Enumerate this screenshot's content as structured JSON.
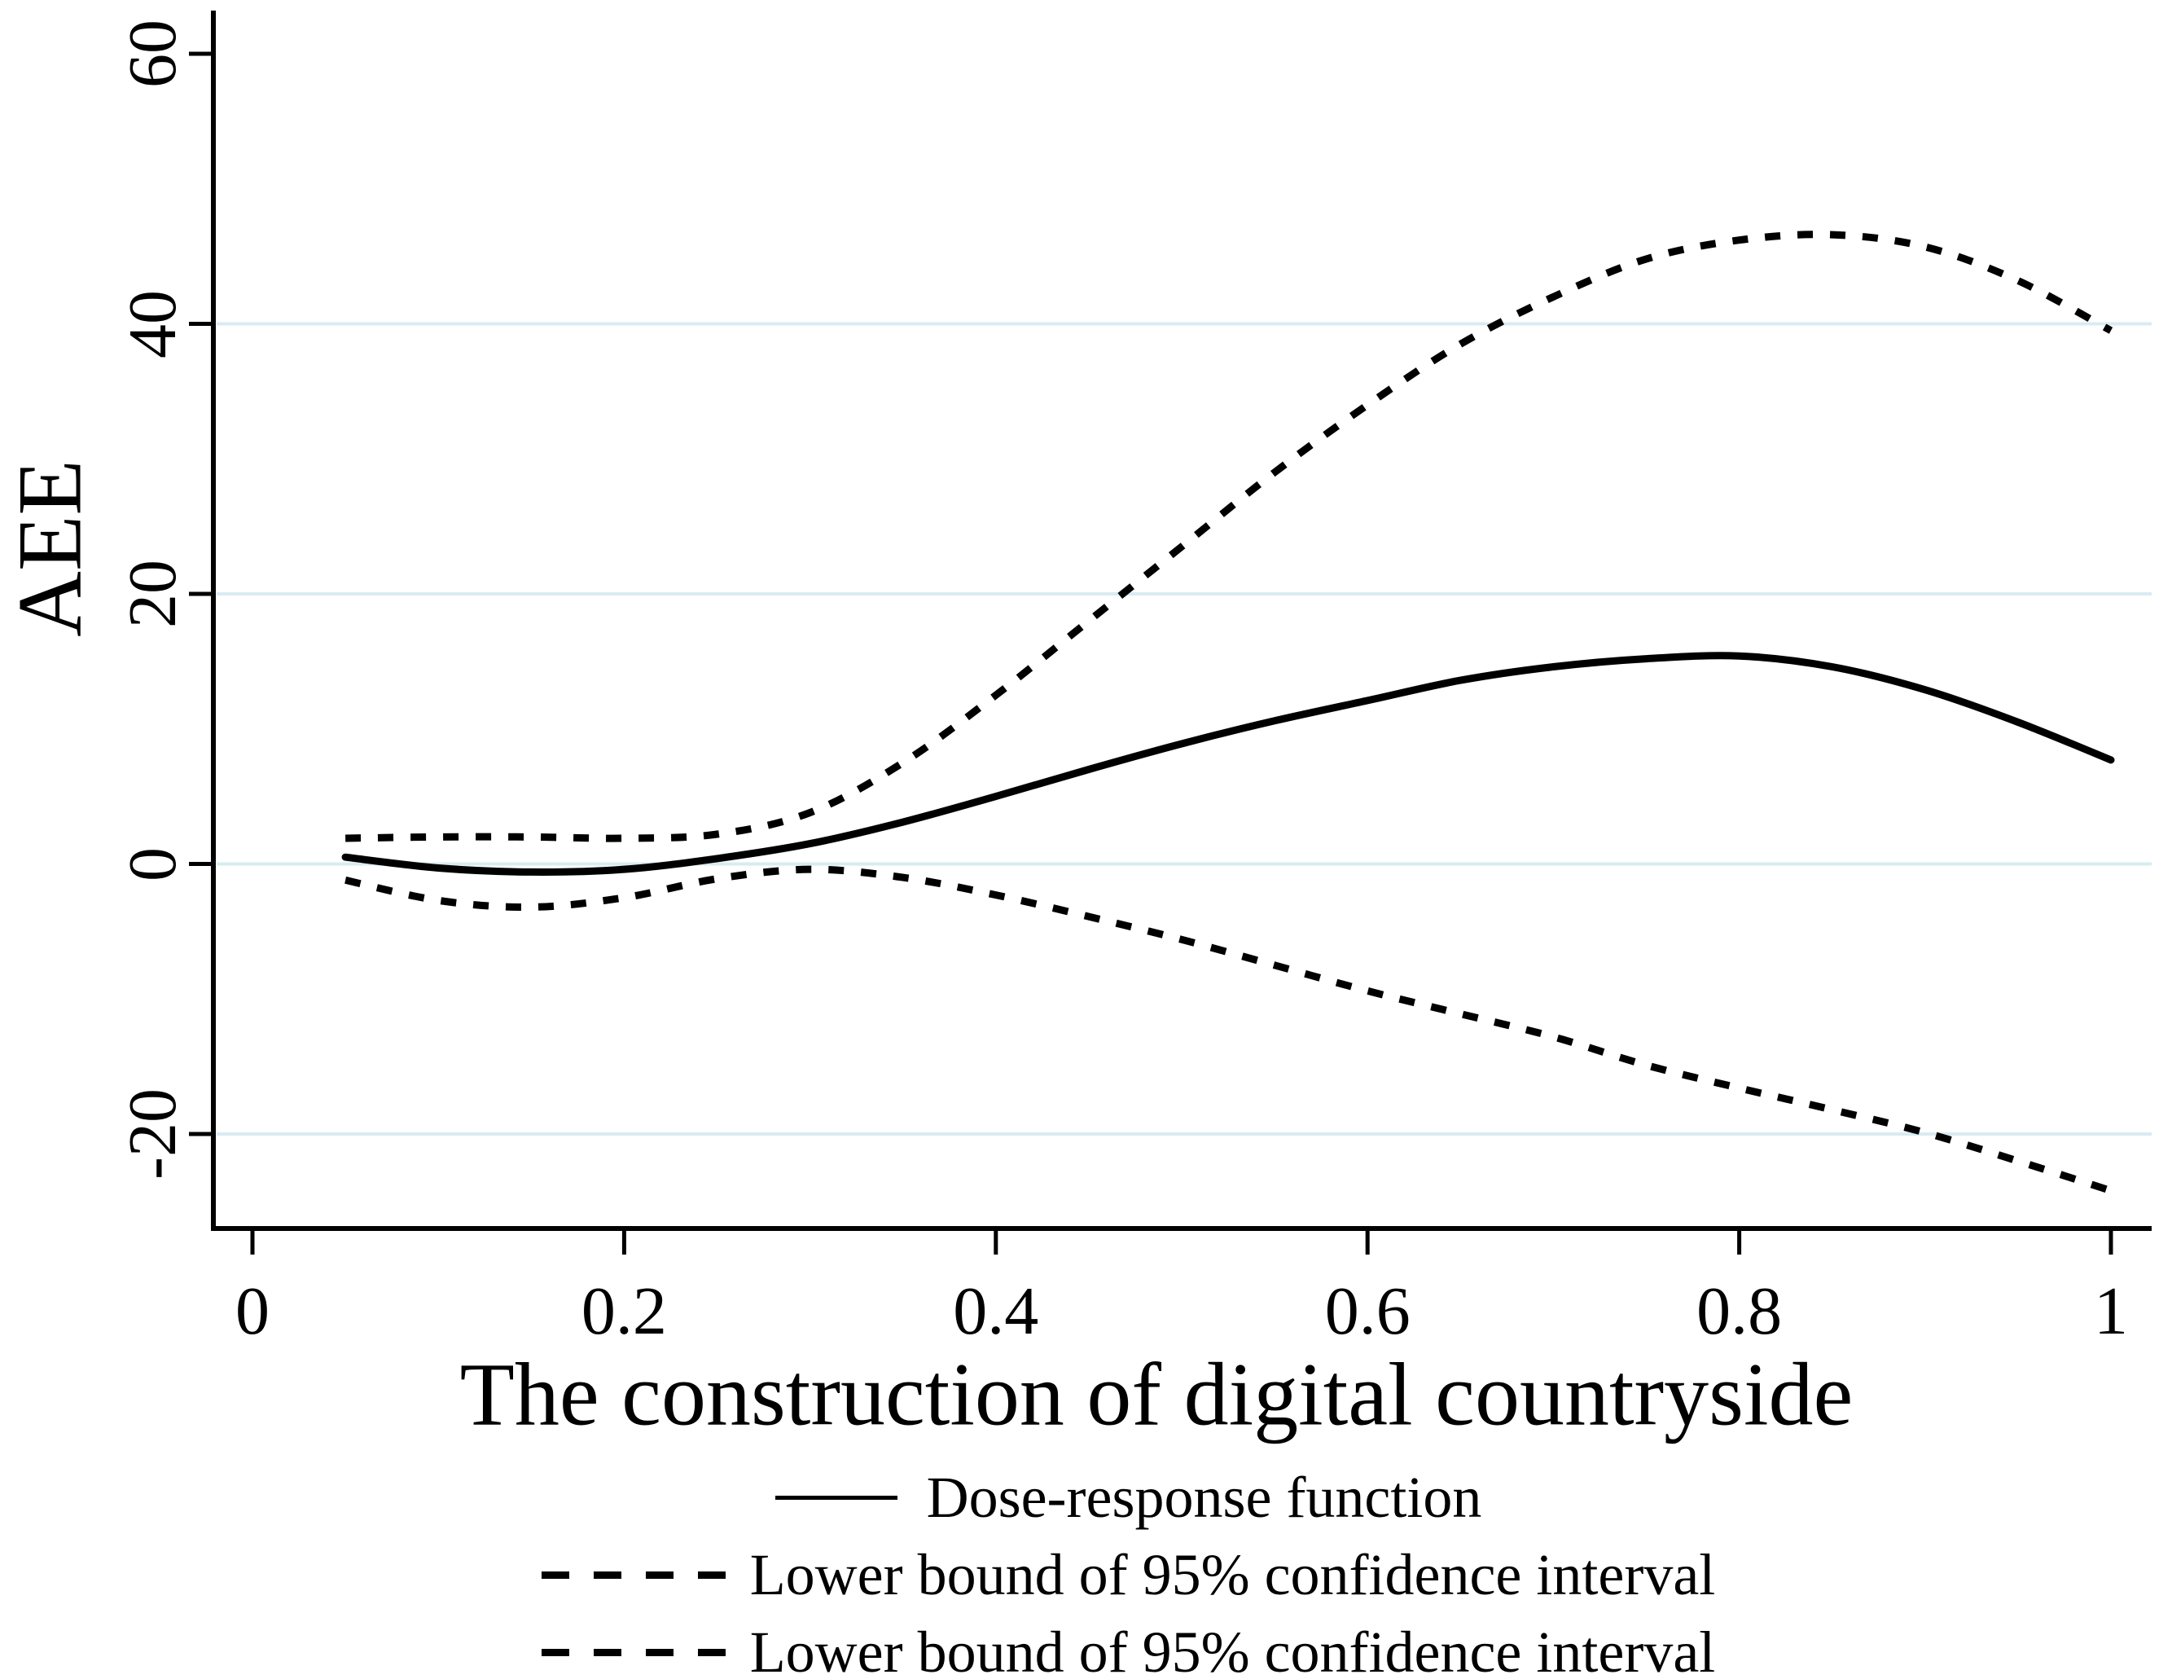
{
  "figure": {
    "ylabel": "AEE",
    "xlabel": "The construction of digital countryside"
  },
  "legend": {
    "items": [
      {
        "label": "Dose-response function",
        "style": "solid"
      },
      {
        "label": "Lower bound of 95% confidence interval",
        "style": "dashed"
      },
      {
        "label": "Lower bound of 95% confidence interval",
        "style": "dashed"
      }
    ]
  },
  "colors": {
    "line": "#000000",
    "grid": "#d9ebf2",
    "background": "#ffffff",
    "text": "#000000"
  },
  "chart_data": {
    "type": "line",
    "title": "",
    "xlabel": "The construction of digital countryside",
    "ylabel": "AEE",
    "xlim": [
      0,
      1
    ],
    "ylim": [
      -27,
      63
    ],
    "xticks": [
      0,
      0.2,
      0.4,
      0.6,
      0.8,
      1
    ],
    "yticks": [
      60,
      40,
      20,
      0,
      -20
    ],
    "grid_yticks": [
      40,
      20,
      0,
      -20
    ],
    "grid": "light horizontal gridlines at labeled y ticks (except 60); no top or right frame",
    "legend_position": "below x-axis title, centered, no border",
    "x": [
      0.05,
      0.1,
      0.15,
      0.2,
      0.25,
      0.3,
      0.35,
      0.4,
      0.45,
      0.5,
      0.55,
      0.6,
      0.65,
      0.7,
      0.75,
      0.8,
      0.85,
      0.9,
      0.95,
      1.0
    ],
    "series": [
      {
        "name": "Dose-response function",
        "role": "point_estimate",
        "style": "solid",
        "values": [
          0.5,
          -0.3,
          -0.6,
          -0.4,
          0.4,
          1.5,
          3.1,
          5.0,
          7.0,
          8.9,
          10.6,
          12.1,
          13.6,
          14.6,
          15.2,
          15.4,
          14.6,
          12.9,
          10.5,
          7.7
        ]
      },
      {
        "name": "Lower bound of 95% confidence interval",
        "role": "upper_bound_curve",
        "style": "dotted",
        "values": [
          1.9,
          2.0,
          2.0,
          1.9,
          2.2,
          3.8,
          7.5,
          12.5,
          18.0,
          23.5,
          29.0,
          34.0,
          38.5,
          42.0,
          44.8,
          46.2,
          46.6,
          45.7,
          43.2,
          39.5
        ]
      },
      {
        "name": "Lower bound of 95% confidence interval",
        "role": "lower_bound_curve",
        "style": "dotted",
        "values": [
          -1.2,
          -2.7,
          -3.2,
          -2.5,
          -1.1,
          -0.4,
          -1.0,
          -2.3,
          -3.9,
          -5.6,
          -7.5,
          -9.4,
          -11.1,
          -12.8,
          -14.9,
          -16.6,
          -18.2,
          -19.9,
          -22.0,
          -24.2
        ]
      }
    ]
  }
}
